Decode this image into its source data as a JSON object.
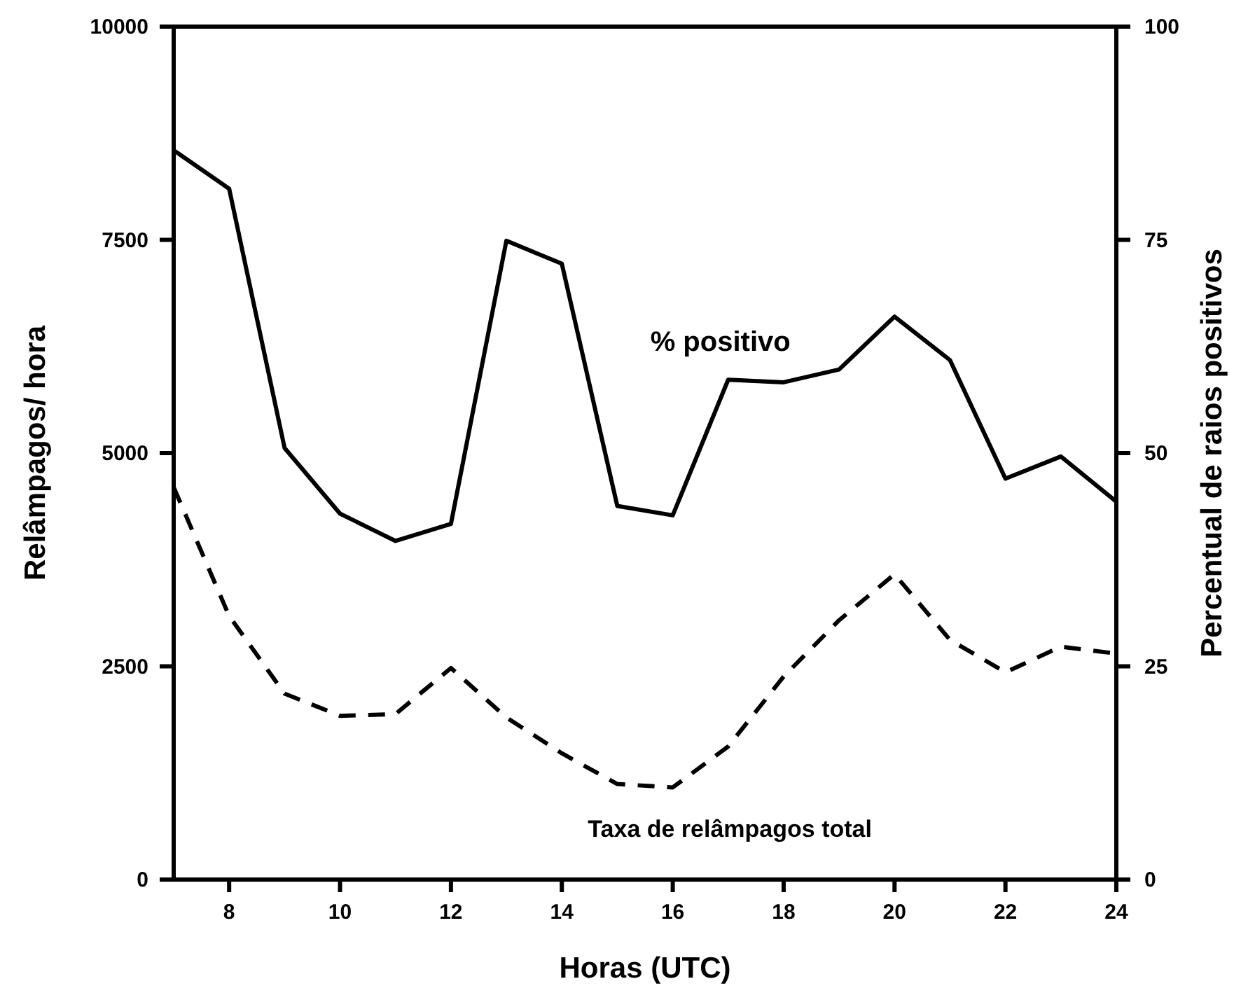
{
  "chart_data": {
    "type": "line",
    "xlabel": "Horas (UTC)",
    "ylabel": "Relâmpagos/ hora",
    "y2label": "Percentual de raios positivos",
    "x": [
      7,
      8,
      9,
      10,
      11,
      12,
      13,
      14,
      15,
      16,
      17,
      18,
      19,
      20,
      21,
      22,
      23,
      24
    ],
    "series": [
      {
        "name": "% positivo",
        "color": "#000000",
        "axis": "y2",
        "line_style": "solid",
        "values": [
          85.5,
          81,
          50.6,
          42.9,
          39.7,
          41.7,
          74.9,
          72.2,
          43.8,
          42.7,
          58.6,
          58.3,
          59.8,
          66,
          60.9,
          47,
          49.6,
          44.3
        ]
      },
      {
        "name": "Taxa de relâmpagos total",
        "color": "#000000",
        "line_style": "dashed",
        "values": [
          4600,
          3090,
          2180,
          1920,
          1940,
          2480,
          1900,
          1480,
          1120,
          1080,
          1560,
          2380,
          3040,
          3580,
          2810,
          2430,
          2730,
          2650
        ]
      }
    ],
    "xlim": [
      7,
      24
    ],
    "xticks": [
      8,
      10,
      12,
      14,
      16,
      18,
      20,
      22,
      24
    ],
    "ylim": [
      0,
      10000
    ],
    "yticks": [
      0,
      2500,
      5000,
      7500,
      10000
    ],
    "y2lim": [
      0,
      100
    ],
    "y2ticks": [
      0,
      25,
      50,
      75,
      100
    ],
    "grid": false,
    "marker": "none"
  }
}
